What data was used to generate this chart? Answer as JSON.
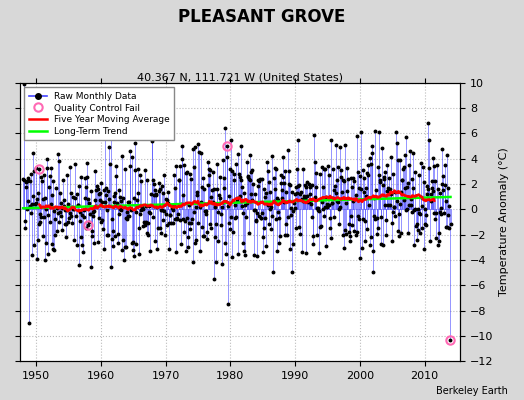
{
  "title": "PLEASANT GROVE",
  "subtitle": "40.367 N, 111.721 W (United States)",
  "ylabel_right": "Temperature Anomaly (°C)",
  "credit": "Berkeley Earth",
  "xlim": [
    1947.5,
    2015.5
  ],
  "ylim": [
    -12,
    10
  ],
  "yticks": [
    -12,
    -10,
    -8,
    -6,
    -4,
    -2,
    0,
    2,
    4,
    6,
    8,
    10
  ],
  "xticks": [
    1950,
    1960,
    1970,
    1980,
    1990,
    2000,
    2010
  ],
  "bg_color": "#d8d8d8",
  "plot_bg_color": "#ffffff",
  "raw_line_color": "#4444ff",
  "raw_dot_color": "black",
  "qc_fail_color": "#ff69b4",
  "moving_avg_color": "red",
  "trend_color": "lime",
  "seed": 137,
  "noise_std": 2.2,
  "trend_slope": 0.018,
  "trend_start_year": 1950,
  "start_year": 1948,
  "end_year": 2014,
  "qc_times": [
    1950.5,
    1958.0,
    1979.5,
    2013.9
  ],
  "qc_values": [
    3.2,
    -1.2,
    5.0,
    -10.3
  ],
  "extreme_times": [
    1948.9,
    1979.7
  ],
  "extreme_values": [
    -9.0,
    -7.5
  ]
}
